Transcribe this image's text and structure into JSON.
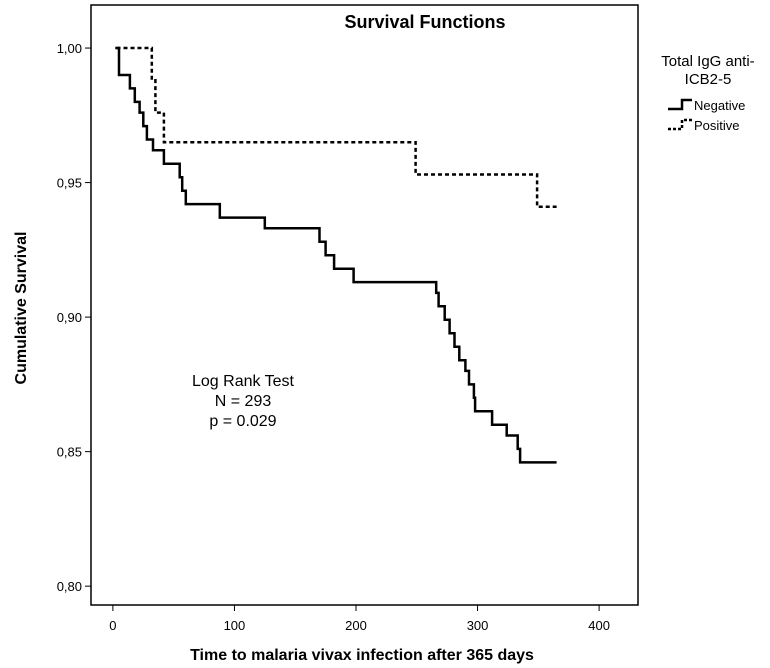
{
  "chart_data": {
    "type": "line",
    "step": true,
    "title": "Survival Functions",
    "xlabel": "Time to malaria vivax infection after 365 days",
    "ylabel": "Cumulative Survival",
    "xlim": [
      -18,
      432
    ],
    "ylim": [
      0.793,
      1.016
    ],
    "xticks": [
      {
        "value": 0,
        "label": "0"
      },
      {
        "value": 100,
        "label": "100"
      },
      {
        "value": 200,
        "label": "200"
      },
      {
        "value": 300,
        "label": "300"
      },
      {
        "value": 400,
        "label": "400"
      }
    ],
    "yticks": [
      {
        "value": 0.8,
        "label": "0,80"
      },
      {
        "value": 0.85,
        "label": "0,85"
      },
      {
        "value": 0.9,
        "label": "0,90"
      },
      {
        "value": 0.95,
        "label": "0,95"
      },
      {
        "value": 1.0,
        "label": "1,00"
      }
    ],
    "legend": {
      "title_lines": [
        "Total IgG anti-",
        "ICB2-5"
      ],
      "placement": "right-outside"
    },
    "series": [
      {
        "name": "Negative",
        "style": "solid",
        "points": [
          [
            2,
            1.0
          ],
          [
            5,
            0.99
          ],
          [
            14,
            0.985
          ],
          [
            18,
            0.98
          ],
          [
            22,
            0.976
          ],
          [
            25,
            0.971
          ],
          [
            28,
            0.966
          ],
          [
            33,
            0.962
          ],
          [
            42,
            0.957
          ],
          [
            55,
            0.952
          ],
          [
            57,
            0.947
          ],
          [
            60,
            0.942
          ],
          [
            88,
            0.937
          ],
          [
            125,
            0.933
          ],
          [
            170,
            0.928
          ],
          [
            175,
            0.923
          ],
          [
            182,
            0.918
          ],
          [
            198,
            0.913
          ],
          [
            202,
            0.913
          ],
          [
            266,
            0.909
          ],
          [
            268,
            0.904
          ],
          [
            273,
            0.899
          ],
          [
            277,
            0.894
          ],
          [
            281,
            0.889
          ],
          [
            285,
            0.884
          ],
          [
            290,
            0.88
          ],
          [
            293,
            0.875
          ],
          [
            297,
            0.87
          ],
          [
            298,
            0.865
          ],
          [
            312,
            0.86
          ],
          [
            324,
            0.856
          ],
          [
            333,
            0.851
          ],
          [
            335,
            0.846
          ],
          [
            365,
            0.846
          ]
        ]
      },
      {
        "name": "Positive",
        "style": "dashed",
        "points": [
          [
            3,
            1.0
          ],
          [
            32,
            0.988
          ],
          [
            35,
            0.976
          ],
          [
            42,
            0.965
          ],
          [
            249,
            0.953
          ],
          [
            349,
            0.941
          ],
          [
            365,
            0.941
          ]
        ]
      }
    ],
    "annotation": {
      "lines": [
        "Log Rank Test",
        "N = 293",
        "p = 0.029"
      ]
    }
  }
}
